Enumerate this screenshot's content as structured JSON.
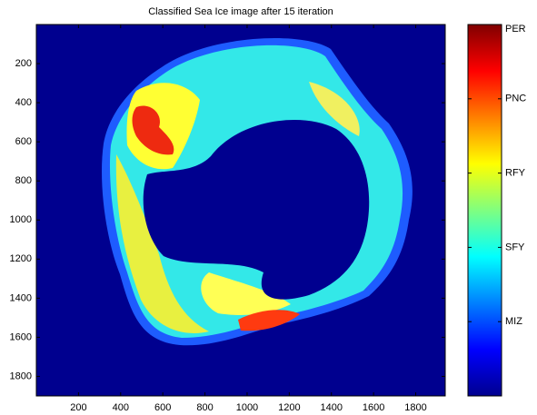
{
  "chart_data": {
    "type": "image",
    "title": "Classified Sea Ice image after 15 iteration",
    "xlim": [
      0,
      1940
    ],
    "xticks": [
      200,
      400,
      600,
      800,
      1000,
      1200,
      1400,
      1600,
      1800
    ],
    "ylim": [
      0,
      1900
    ],
    "yticks": [
      200,
      400,
      600,
      800,
      1000,
      1200,
      1400,
      1600,
      1800
    ],
    "y_reversed": true,
    "clim": [
      0,
      5
    ],
    "cticks": [
      {
        "value": 5,
        "label": "PER"
      },
      {
        "value": 4,
        "label": "PNC"
      },
      {
        "value": 3,
        "label": "RFY"
      },
      {
        "value": 2,
        "label": "SFY"
      },
      {
        "value": 1,
        "label": "MIZ"
      }
    ]
  }
}
